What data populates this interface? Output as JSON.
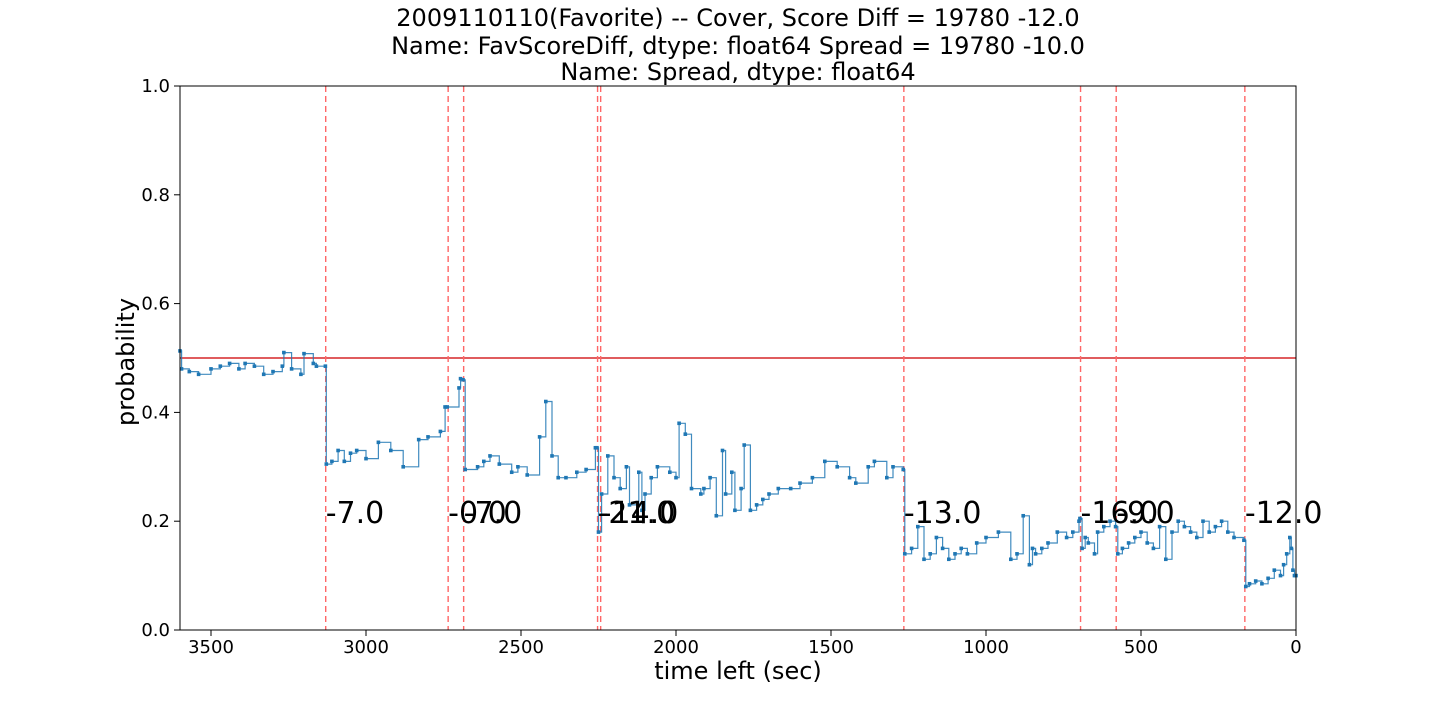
{
  "chart_data": {
    "type": "line",
    "title_lines": [
      "2009110110(Favorite) -- Cover, Score Diff = 19780   -12.0",
      "Name: FavScoreDiff, dtype: float64 Spread = 19780   -10.0",
      "Name: Spread, dtype: float64"
    ],
    "xlabel": "time left (sec)",
    "ylabel": "probability",
    "xlim": [
      3600,
      0
    ],
    "ylim": [
      0.0,
      1.0
    ],
    "xticks": [
      3500,
      3000,
      2500,
      2000,
      1500,
      1000,
      500,
      0
    ],
    "xtick_labels": [
      "3500",
      "3000",
      "2500",
      "2000",
      "1500",
      "1000",
      "500",
      "0"
    ],
    "yticks": [
      0.0,
      0.2,
      0.4,
      0.6,
      0.8,
      1.0
    ],
    "ytick_labels": [
      "0.0",
      "0.2",
      "0.4",
      "0.6",
      "0.8",
      "1.0"
    ],
    "reference_line": {
      "y": 0.5,
      "color": "#d62728"
    },
    "series_color": "#1f77b4",
    "event_line_color": "#ff6666",
    "events": [
      {
        "x": 3130,
        "label": "-7.0"
      },
      {
        "x": 2735,
        "label": "-0.0"
      },
      {
        "x": 2685,
        "label": "-7.0"
      },
      {
        "x": 2253,
        "label": "-21.0"
      },
      {
        "x": 2243,
        "label": "-14.0"
      },
      {
        "x": 1265,
        "label": "-13.0"
      },
      {
        "x": 695,
        "label": "-16.0"
      },
      {
        "x": 580,
        "label": "-9.0"
      },
      {
        "x": 165,
        "label": "-12.0"
      }
    ],
    "series": [
      {
        "x": [
          3600,
          3595,
          3570,
          3540,
          3500,
          3470,
          3440,
          3410,
          3390,
          3360,
          3330,
          3300,
          3270,
          3265,
          3240,
          3210,
          3200,
          3170,
          3160,
          3131,
          3128,
          3110,
          3090,
          3070,
          3050,
          3030,
          3000,
          2960,
          2920,
          2880,
          2830,
          2800,
          2760,
          2745,
          2738,
          2700,
          2695,
          2687,
          2680,
          2640,
          2620,
          2600,
          2570,
          2530,
          2510,
          2480,
          2440,
          2420,
          2400,
          2380,
          2355,
          2320,
          2290,
          2260,
          2255,
          2250,
          2240,
          2220,
          2200,
          2180,
          2160,
          2150,
          2120,
          2110,
          2100,
          2080,
          2060,
          2020,
          2000,
          1990,
          1970,
          1950,
          1920,
          1910,
          1890,
          1870,
          1850,
          1840,
          1820,
          1810,
          1790,
          1780,
          1760,
          1740,
          1720,
          1700,
          1670,
          1630,
          1600,
          1560,
          1520,
          1480,
          1440,
          1420,
          1380,
          1360,
          1320,
          1300,
          1267,
          1262,
          1240,
          1220,
          1200,
          1180,
          1160,
          1140,
          1120,
          1100,
          1080,
          1060,
          1030,
          1000,
          960,
          920,
          900,
          880,
          860,
          850,
          840,
          820,
          800,
          770,
          740,
          720,
          700,
          697,
          690,
          680,
          670,
          650,
          640,
          620,
          600,
          582,
          575,
          560,
          540,
          520,
          500,
          480,
          460,
          440,
          420,
          400,
          380,
          360,
          340,
          320,
          300,
          280,
          260,
          240,
          220,
          200,
          168,
          162,
          150,
          130,
          110,
          90,
          70,
          50,
          40,
          30,
          20,
          15,
          10,
          5,
          0
        ],
        "y": [
          0.513,
          0.48,
          0.475,
          0.47,
          0.48,
          0.485,
          0.49,
          0.48,
          0.49,
          0.485,
          0.47,
          0.475,
          0.485,
          0.51,
          0.48,
          0.47,
          0.508,
          0.49,
          0.485,
          0.485,
          0.305,
          0.31,
          0.33,
          0.31,
          0.325,
          0.33,
          0.315,
          0.345,
          0.33,
          0.3,
          0.35,
          0.355,
          0.365,
          0.41,
          0.41,
          0.445,
          0.462,
          0.46,
          0.295,
          0.3,
          0.31,
          0.32,
          0.305,
          0.29,
          0.3,
          0.285,
          0.355,
          0.42,
          0.32,
          0.28,
          0.28,
          0.29,
          0.295,
          0.335,
          0.335,
          0.18,
          0.25,
          0.32,
          0.28,
          0.26,
          0.3,
          0.23,
          0.29,
          0.22,
          0.25,
          0.28,
          0.3,
          0.29,
          0.28,
          0.38,
          0.36,
          0.26,
          0.25,
          0.26,
          0.28,
          0.21,
          0.33,
          0.25,
          0.29,
          0.22,
          0.26,
          0.34,
          0.22,
          0.23,
          0.24,
          0.25,
          0.26,
          0.26,
          0.27,
          0.28,
          0.31,
          0.3,
          0.28,
          0.27,
          0.3,
          0.31,
          0.28,
          0.3,
          0.295,
          0.14,
          0.15,
          0.19,
          0.13,
          0.14,
          0.17,
          0.15,
          0.13,
          0.14,
          0.15,
          0.14,
          0.16,
          0.17,
          0.18,
          0.13,
          0.14,
          0.21,
          0.12,
          0.15,
          0.14,
          0.15,
          0.16,
          0.18,
          0.17,
          0.18,
          0.2,
          0.205,
          0.15,
          0.17,
          0.16,
          0.14,
          0.18,
          0.19,
          0.2,
          0.19,
          0.14,
          0.15,
          0.16,
          0.17,
          0.18,
          0.16,
          0.15,
          0.19,
          0.13,
          0.18,
          0.2,
          0.19,
          0.18,
          0.17,
          0.2,
          0.18,
          0.19,
          0.2,
          0.18,
          0.17,
          0.165,
          0.08,
          0.085,
          0.09,
          0.085,
          0.095,
          0.11,
          0.1,
          0.12,
          0.14,
          0.17,
          0.15,
          0.11,
          0.1,
          0.1
        ]
      }
    ]
  }
}
